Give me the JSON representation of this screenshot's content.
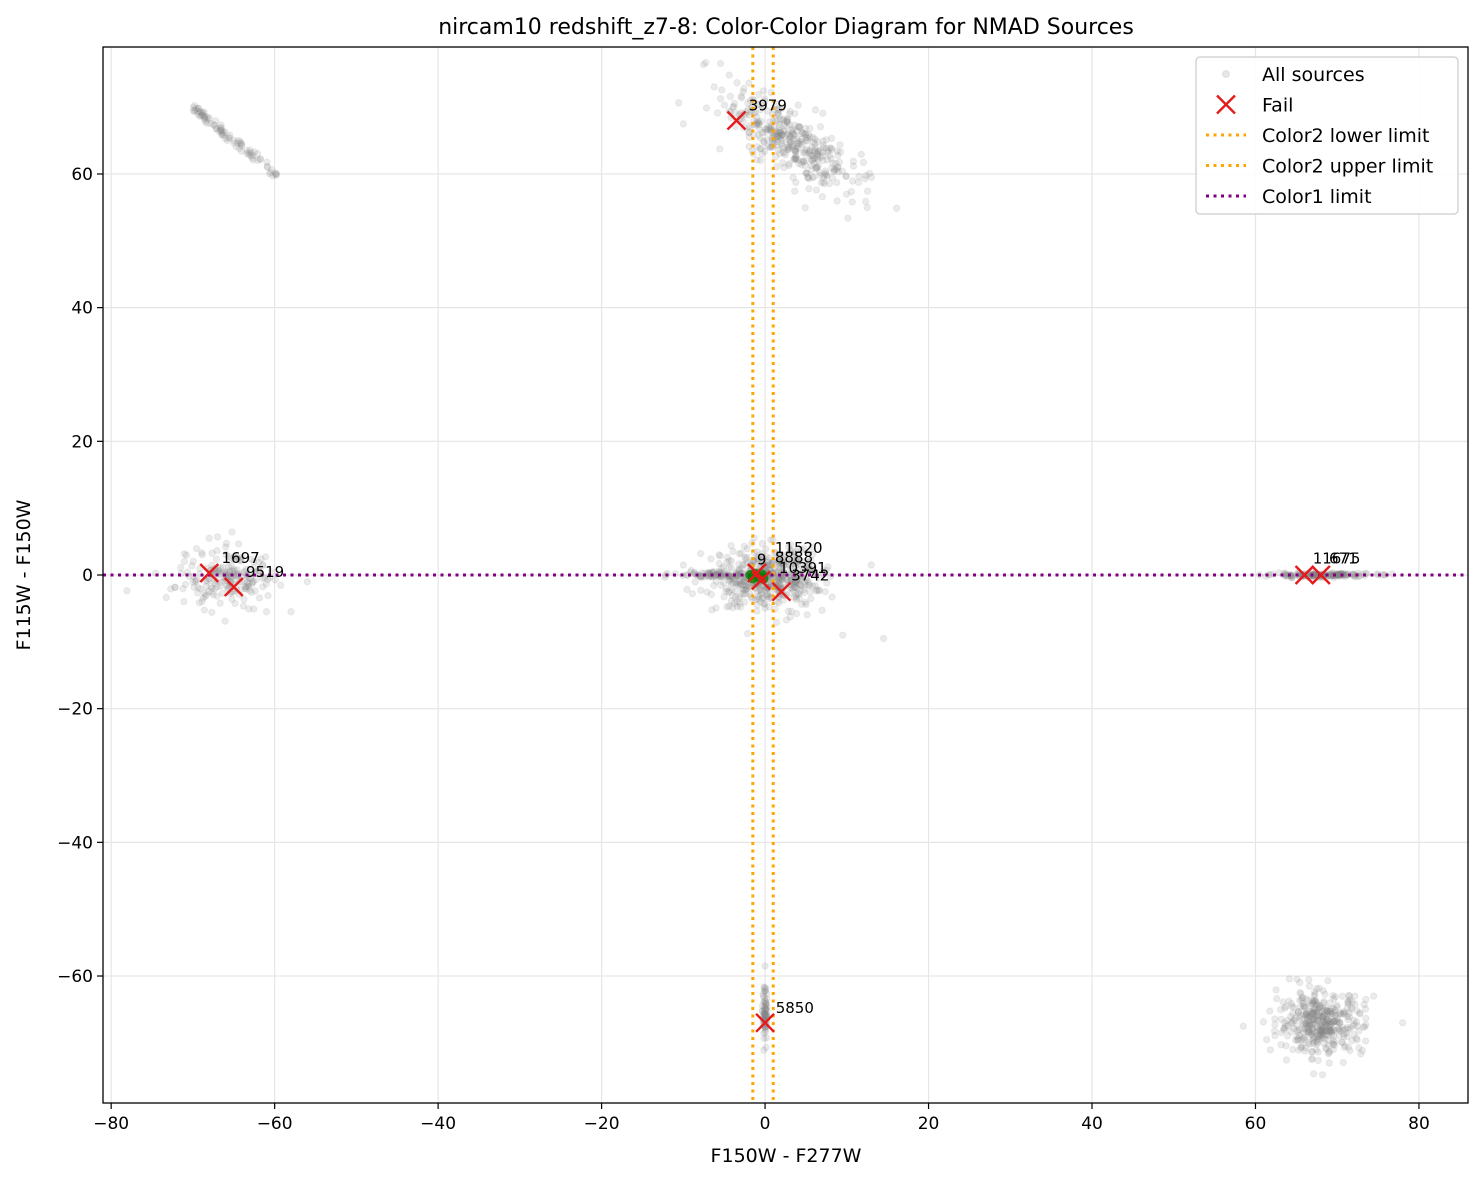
{
  "chart_data": {
    "type": "scatter",
    "title": "nircam10 redshift_z7-8: Color-Color Diagram for NMAD Sources",
    "xlabel": "F150W - F277W",
    "ylabel": "F115W - F150W",
    "xlim": [
      -81,
      86
    ],
    "ylim": [
      -79,
      79
    ],
    "xticks": [
      -80,
      -60,
      -40,
      -20,
      0,
      20,
      40,
      60,
      80
    ],
    "yticks": [
      -60,
      -40,
      -20,
      0,
      20,
      40,
      60
    ],
    "grid": true,
    "legend_position": "top-right",
    "colors": {
      "all_sources": "#808080",
      "fail": "#e41a1c",
      "color2_limit": "#ffa500",
      "color1_limit": "#800080",
      "pass": "#008000"
    },
    "limits": {
      "color2_lower": -1.5,
      "color2_upper": 1.0,
      "color1": 0.0
    },
    "clusters": [
      {
        "x": -65,
        "y": 65,
        "sx": 0,
        "sy": 0,
        "n": 90,
        "line": {
          "x0": -70,
          "y0": 70,
          "x1": -59.5,
          "y1": 59.5,
          "jitter": 0.3
        }
      },
      {
        "x": 3,
        "y": 65,
        "sx": 4,
        "sy": 2.5,
        "n": 380,
        "slope": -0.7
      },
      {
        "x": -66,
        "y": -0.5,
        "sx": 3,
        "sy": 2.2,
        "n": 200
      },
      {
        "x": 0.5,
        "y": -0.5,
        "sx": 3.2,
        "sy": 2.2,
        "n": 500
      },
      {
        "x": -6,
        "y": 0,
        "sx": 2.5,
        "sy": 0.25,
        "n": 80
      },
      {
        "x": 68,
        "y": 0,
        "sx": 3,
        "sy": 0.15,
        "n": 160
      },
      {
        "x": 0,
        "y": -66,
        "sx": 0.15,
        "sy": 2,
        "n": 70
      },
      {
        "x": 68,
        "y": -67,
        "sx": 2.6,
        "sy": 2.3,
        "n": 400
      }
    ],
    "all_sources": [
      {
        "x": -10,
        "y": 1.5
      },
      {
        "x": -11,
        "y": 0.2
      },
      {
        "x": 14.5,
        "y": -9.5
      },
      {
        "x": 9.5,
        "y": -9
      },
      {
        "x": 13,
        "y": 1.5
      },
      {
        "x": -56,
        "y": -1
      },
      {
        "x": -58,
        "y": -5.5
      },
      {
        "x": -61,
        "y": -5.5
      },
      {
        "x": -68,
        "y": 5.5
      },
      {
        "x": -67,
        "y": 5.7
      },
      {
        "x": 58.5,
        "y": -67.5
      },
      {
        "x": 78,
        "y": -67
      },
      {
        "x": 73.5,
        "y": -63.5
      },
      {
        "x": 0,
        "y": -58.5
      },
      {
        "x": -10,
        "y": 67.5
      },
      {
        "x": 13,
        "y": 59.5
      },
      {
        "x": 12.5,
        "y": 55
      },
      {
        "x": 75,
        "y": 0
      },
      {
        "x": 60.5,
        "y": 0
      }
    ],
    "fail": [
      {
        "id": "3979",
        "x": -3.5,
        "y": 68
      },
      {
        "id": "1697",
        "x": -68,
        "y": 0.3
      },
      {
        "id": "9519",
        "x": -65,
        "y": -1.8
      },
      {
        "id": "3742",
        "x": 2,
        "y": -2.5
      },
      {
        "id": "11675",
        "x": 66,
        "y": 0
      },
      {
        "id": "671",
        "x": 68,
        "y": 0
      },
      {
        "id": "5850",
        "x": 0,
        "y": -67
      },
      {
        "id": "",
        "x": -1,
        "y": 0.3
      },
      {
        "id": "",
        "x": -0.5,
        "y": -0.8
      }
    ],
    "pass": [
      {
        "x": -1.8,
        "y": 0
      },
      {
        "x": -1.2,
        "y": 0.2
      },
      {
        "x": -0.8,
        "y": -0.3
      },
      {
        "x": -0.4,
        "y": 0.1
      },
      {
        "x": -1.5,
        "y": -0.5
      },
      {
        "x": -0.2,
        "y": -0.6
      }
    ],
    "annotations": [
      {
        "text": "3979",
        "x": -2,
        "y": 69.5
      },
      {
        "text": "1697",
        "x": -66.5,
        "y": 1.8
      },
      {
        "text": "9519",
        "x": -63.5,
        "y": -0.3
      },
      {
        "text": "11520",
        "x": 1.2,
        "y": 3.3
      },
      {
        "text": "9",
        "x": -1,
        "y": 1.6
      },
      {
        "text": "8888",
        "x": 1.2,
        "y": 1.9
      },
      {
        "text": "10391",
        "x": 1.7,
        "y": 0.3
      },
      {
        "text": "3742",
        "x": 3.2,
        "y": -0.8
      },
      {
        "text": "11675",
        "x": 67,
        "y": 1.7
      },
      {
        "text": "671",
        "x": 69,
        "y": 1.7
      },
      {
        "text": "5850",
        "x": 1.3,
        "y": -65.5
      }
    ],
    "legend": [
      {
        "label": "All sources",
        "kind": "dot"
      },
      {
        "label": "Fail",
        "kind": "cross"
      },
      {
        "label": "Color2 lower limit",
        "kind": "orange-line"
      },
      {
        "label": "Color2 upper limit",
        "kind": "orange-line"
      },
      {
        "label": "Color1 limit",
        "kind": "purple-line"
      }
    ]
  }
}
